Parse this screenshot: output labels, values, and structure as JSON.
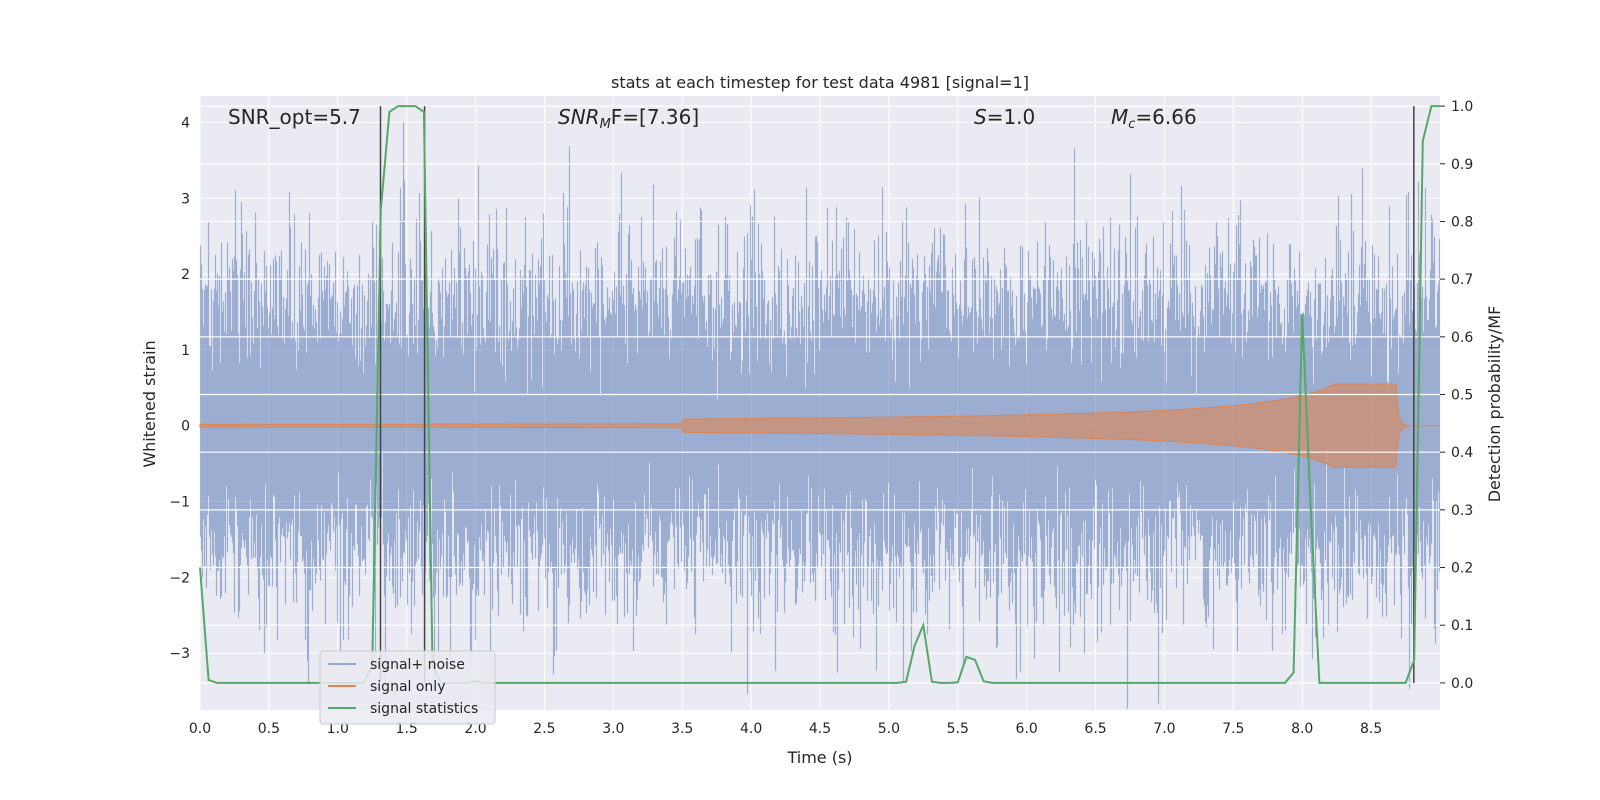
{
  "chart_data": {
    "type": "line",
    "title": "stats at each timestep for test data 4981 [signal=1]",
    "xlabel": "Time (s)",
    "ylabel_left": "Whitened strain",
    "ylabel_right": "Detection probability/MF",
    "xlim": [
      0.0,
      9.0
    ],
    "ylim_left": [
      -3.75,
      4.35
    ],
    "ylim_right": [
      -0.047,
      1.0175
    ],
    "x_ticks": [
      0.0,
      0.5,
      1.0,
      1.5,
      2.0,
      2.5,
      3.0,
      3.5,
      4.0,
      4.5,
      5.0,
      5.5,
      6.0,
      6.5,
      7.0,
      7.5,
      8.0,
      8.5
    ],
    "x_tick_labels": [
      "0.0",
      "0.5",
      "1.0",
      "1.5",
      "2.0",
      "2.5",
      "3.0",
      "3.5",
      "4.0",
      "4.5",
      "5.0",
      "5.5",
      "6.0",
      "6.5",
      "7.0",
      "7.5",
      "8.0",
      "8.5"
    ],
    "y_left_ticks": [
      4,
      3,
      2,
      1,
      0,
      -1,
      -2,
      -3
    ],
    "y_left_tick_labels": [
      "4",
      "3",
      "2",
      "1",
      "0",
      "−1",
      "−2",
      "−3"
    ],
    "y_right_ticks": [
      1.0,
      0.9,
      0.8,
      0.7,
      0.6,
      0.5,
      0.4,
      0.3,
      0.2,
      0.1,
      0.0
    ],
    "y_right_tick_labels": [
      "1.0",
      "0.9",
      "0.8",
      "0.7",
      "0.6",
      "0.5",
      "0.4",
      "0.3",
      "0.2",
      "0.1",
      "0.0"
    ],
    "grid": true,
    "legend_position": "lower-left",
    "series": [
      {
        "name": "signal+ noise",
        "axis": "left",
        "kind": "noise",
        "sample_rate": 2048,
        "duration": 9.0,
        "whitened_std": 1.0,
        "color": "#4c72b0"
      },
      {
        "name": "signal only",
        "axis": "left",
        "kind": "chirp",
        "start_time": 0.0,
        "merger_time": 8.68,
        "peak_amplitude": 0.55,
        "color": "#dd8452"
      },
      {
        "name": "signal statistics",
        "axis": "right",
        "color": "#55a868",
        "x": [
          0.0,
          0.0625,
          0.125,
          0.1875,
          0.25,
          0.3125,
          0.375,
          0.4375,
          0.5,
          0.5625,
          0.625,
          0.6875,
          0.75,
          0.8125,
          0.875,
          0.9375,
          1.0,
          1.0625,
          1.125,
          1.1875,
          1.25,
          1.3125,
          1.375,
          1.4375,
          1.5,
          1.5625,
          1.625,
          1.6875,
          1.75,
          1.8125,
          1.875,
          1.9375,
          2.0,
          2.0625,
          2.125,
          2.1875,
          2.25,
          2.3125,
          2.375,
          2.4375,
          2.5,
          2.5625,
          2.625,
          2.6875,
          2.75,
          2.8125,
          2.875,
          2.9375,
          3.0,
          3.0625,
          3.125,
          3.1875,
          3.25,
          3.3125,
          3.375,
          3.4375,
          3.5,
          3.5625,
          3.625,
          3.6875,
          3.75,
          3.8125,
          3.875,
          3.9375,
          4.0,
          4.0625,
          4.125,
          4.1875,
          4.25,
          4.3125,
          4.375,
          4.4375,
          4.5,
          4.5625,
          4.625,
          4.6875,
          4.75,
          4.8125,
          4.875,
          4.9375,
          5.0,
          5.0625,
          5.125,
          5.1875,
          5.25,
          5.3125,
          5.375,
          5.4375,
          5.5,
          5.5625,
          5.625,
          5.6875,
          5.75,
          5.8125,
          5.875,
          5.9375,
          6.0,
          6.0625,
          6.125,
          6.1875,
          6.25,
          6.3125,
          6.375,
          6.4375,
          6.5,
          6.5625,
          6.625,
          6.6875,
          6.75,
          6.8125,
          6.875,
          6.9375,
          7.0,
          7.0625,
          7.125,
          7.1875,
          7.25,
          7.3125,
          7.375,
          7.4375,
          7.5,
          7.5625,
          7.625,
          7.6875,
          7.75,
          7.8125,
          7.875,
          7.9375,
          8.0,
          8.0625,
          8.125,
          8.1875,
          8.25,
          8.3125,
          8.375,
          8.4375,
          8.5,
          8.5625,
          8.625,
          8.6875,
          8.75,
          8.8125,
          8.875,
          8.9375,
          9.0
        ],
        "y": [
          0.2,
          0.005,
          0.0,
          0.0,
          0.0,
          0.0,
          0.0,
          0.0,
          0.0,
          0.0,
          0.0,
          0.0,
          0.0,
          0.0,
          0.0,
          0.0,
          0.0,
          0.0,
          0.0,
          0.0,
          0.03,
          0.82,
          0.99,
          1.0,
          1.0,
          1.0,
          0.99,
          0.03,
          0.0,
          0.0,
          0.0,
          0.0,
          0.003,
          0.0,
          0.0,
          0.0,
          0.0,
          0.0,
          0.0,
          0.0,
          0.0,
          0.0,
          0.0,
          0.0,
          0.0,
          0.0,
          0.0,
          0.0,
          0.0,
          0.0,
          0.0,
          0.0,
          0.0,
          0.0,
          0.0,
          0.0,
          0.0,
          0.0,
          0.0,
          0.0,
          0.0,
          0.0,
          0.0,
          0.0,
          0.0,
          0.0,
          0.0,
          0.0,
          0.0,
          0.0,
          0.0,
          0.0,
          0.0,
          0.0,
          0.0,
          0.0,
          0.0,
          0.0,
          0.0,
          0.0,
          0.0,
          0.0,
          0.002,
          0.065,
          0.1,
          0.002,
          0.0,
          0.0,
          0.001,
          0.045,
          0.04,
          0.003,
          0.0,
          0.0,
          0.0,
          0.0,
          0.0,
          0.0,
          0.0,
          0.0,
          0.0,
          0.0,
          0.0,
          0.0,
          0.0,
          0.0,
          0.0,
          0.0,
          0.0,
          0.0,
          0.0,
          0.0,
          0.0,
          0.0,
          0.0,
          0.0,
          0.0,
          0.0,
          0.0,
          0.0,
          0.0,
          0.0,
          0.0,
          0.0,
          0.0,
          0.0,
          0.0,
          0.018,
          0.64,
          0.3,
          0.0,
          0.0,
          0.0,
          0.0,
          0.0,
          0.0,
          0.0,
          0.0,
          0.0,
          0.0,
          0.0,
          0.04,
          0.94,
          1.0,
          1.0
        ]
      }
    ],
    "vlines": [
      1.31,
      1.63,
      8.81
    ],
    "annotations": [
      {
        "text": "SNR_opt=5.7"
      },
      {
        "text": "SNR",
        "sub": "M",
        "rest": "F=[7.36]"
      },
      {
        "text": "S",
        "rest": "=1.0"
      },
      {
        "text": "M",
        "sub": "c",
        "rest": "=6.66"
      }
    ]
  }
}
